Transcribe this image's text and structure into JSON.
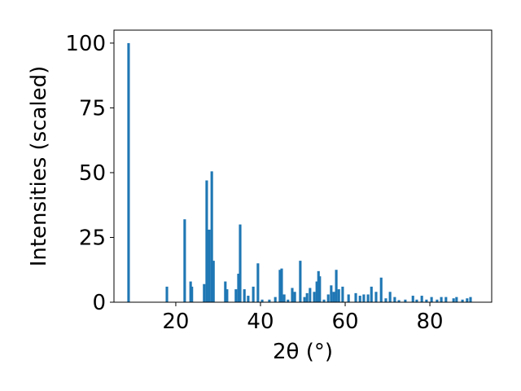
{
  "chart_data": {
    "type": "bar",
    "xlabel": "2θ (°)",
    "ylabel": "Intensities (scaled)",
    "x": [
      8.85,
      17.9,
      22.1,
      23.5,
      23.8,
      26.7,
      27.3,
      27.9,
      28.5,
      28.9,
      31.7,
      32.1,
      34.2,
      34.8,
      35.2,
      36.2,
      37.1,
      38.3,
      39.4,
      40.4,
      42.1,
      43.5,
      44.6,
      45.0,
      45.6,
      46.5,
      47.5,
      48.1,
      49.4,
      50.4,
      51.0,
      51.7,
      52.7,
      53.3,
      53.7,
      54.0,
      55.0,
      56.0,
      56.7,
      57.3,
      57.9,
      58.5,
      59.4,
      60.8,
      62.5,
      63.5,
      64.4,
      65.4,
      66.2,
      67.3,
      68.5,
      69.6,
      70.6,
      71.7,
      72.7,
      74.2,
      76.0,
      76.9,
      78.1,
      79.2,
      80.4,
      81.7,
      82.7,
      83.8,
      85.6,
      86.3,
      87.7,
      88.8,
      89.6
    ],
    "values": [
      100,
      6,
      32,
      8,
      6,
      7,
      47,
      28,
      50.5,
      16,
      8,
      5,
      5,
      11,
      30,
      5,
      2.5,
      6,
      15,
      1,
      1,
      2,
      12.5,
      13,
      3,
      1,
      5.5,
      4,
      16,
      2,
      3.5,
      5.5,
      4,
      8,
      12,
      10,
      1,
      3,
      6.5,
      4,
      12.5,
      5,
      6,
      3,
      3.5,
      2.5,
      3,
      3,
      6,
      4,
      9.5,
      1.5,
      4,
      2,
      0.8,
      1,
      2.5,
      1,
      2.5,
      1,
      2,
      1,
      2,
      2,
      1.5,
      2,
      1,
      1.5,
      2
    ],
    "color": "#1f77b4",
    "xlim": [
      5.4,
      94.6
    ],
    "xticks": [
      20,
      40,
      60,
      80
    ],
    "ylim": [
      0,
      105
    ],
    "yticks": [
      0,
      25,
      50,
      75,
      100
    ]
  }
}
